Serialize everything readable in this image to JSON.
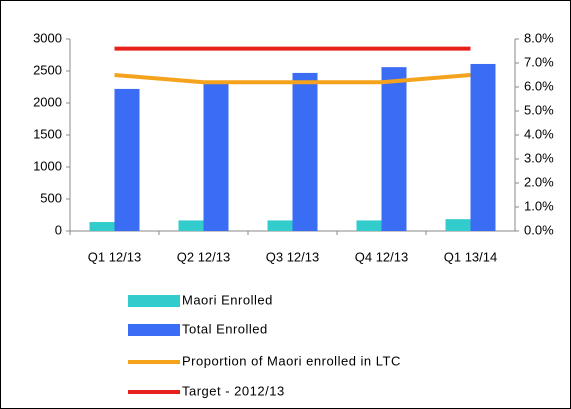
{
  "chart_data": {
    "type": "bar",
    "categories": [
      "Q1 12/13",
      "Q2 12/13",
      "Q3 12/13",
      "Q4 12/13",
      "Q1 13/14"
    ],
    "series": [
      {
        "name": "Maori Enrolled",
        "type": "bar",
        "color": "#33cccc",
        "values": [
          140,
          165,
          165,
          165,
          185
        ]
      },
      {
        "name": "Total Enrolled",
        "type": "bar",
        "color": "#3a6cf4",
        "values": [
          2220,
          2330,
          2470,
          2560,
          2610
        ]
      },
      {
        "name": "Proportion of Maori enrolled in LTC",
        "type": "line",
        "axis": "y2",
        "color": "#f5a21c",
        "values": [
          6.5,
          6.2,
          6.2,
          6.2,
          6.5
        ]
      },
      {
        "name": "Target - 2012/13",
        "type": "line",
        "axis": "y2",
        "color": "#e8201b",
        "values": [
          7.6,
          7.6,
          7.6,
          7.6,
          7.6
        ]
      }
    ],
    "ylim": [
      0,
      3000
    ],
    "yticks": [
      0,
      500,
      1000,
      1500,
      2000,
      2500,
      3000
    ],
    "y2lim": [
      0,
      8
    ],
    "y2ticks": [
      {
        "value": 0,
        "label": "0.0%"
      },
      {
        "value": 1,
        "label": "1.0%"
      },
      {
        "value": 2,
        "label": "2.0%"
      },
      {
        "value": 3,
        "label": "3.0%"
      },
      {
        "value": 4,
        "label": "4.0%"
      },
      {
        "value": 5,
        "label": "5.0%"
      },
      {
        "value": 6,
        "label": "6.0%"
      },
      {
        "value": 7,
        "label": "7.0%"
      },
      {
        "value": 8,
        "label": "8.0%"
      }
    ],
    "grid": false,
    "legend": "bottom"
  }
}
